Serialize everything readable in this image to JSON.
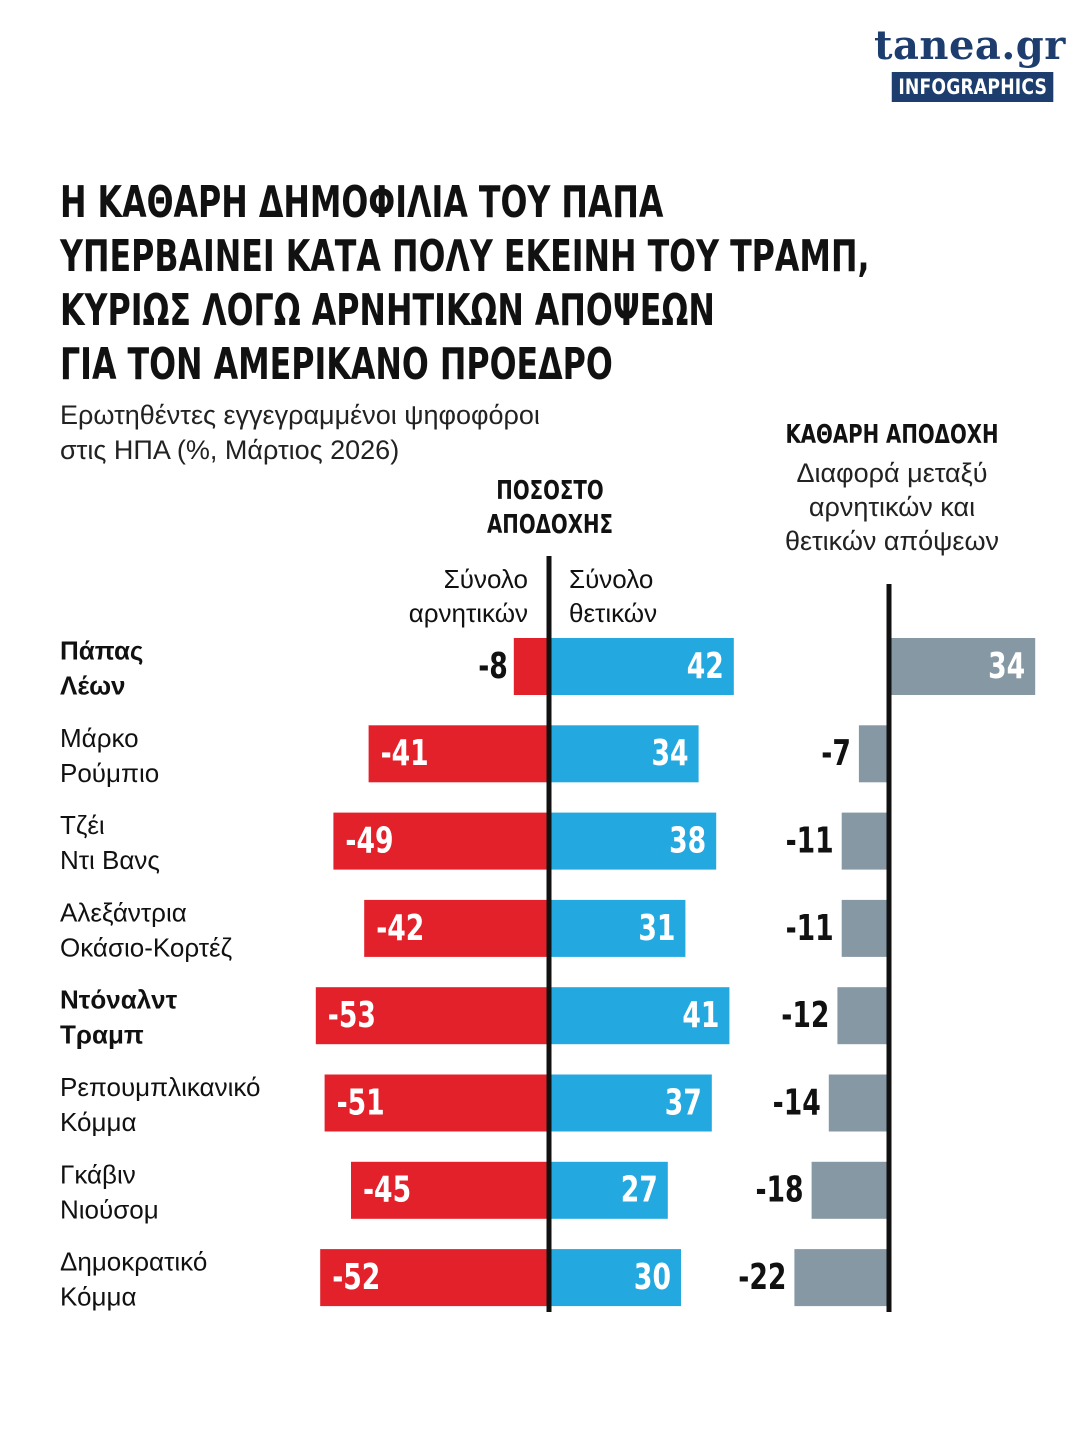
{
  "brand": {
    "name": "tanea.gr",
    "tag": "INFOGRAPHICS"
  },
  "title_lines": [
    "Η ΚΑΘΑΡΗ ΔΗΜΟΦΙΛΙΑ ΤΟΥ ΠΑΠΑ",
    "ΥΠΕΡΒΑΙΝΕΙ ΚΑΤΑ ΠΟΛΥ ΕΚΕΙΝΗ ΤΟΥ ΤΡΑΜΠ,",
    "ΚΥΡΙΩΣ ΛΟΓΩ ΑΡΝΗΤΙΚΩΝ ΑΠΟΨΕΩΝ",
    "ΓΙΑ ΤΟΝ ΑΜΕΡΙΚΑΝΟ ΠΡΟΕΔΡΟ"
  ],
  "subtitle": "Ερωτηθέντες εγγεγραμμένοι ψηφοφόροι\nστις ΗΠΑ (%, Μάρτιος 2026)",
  "headers": {
    "approval": "ΠΟΣΟΣΤΟ\nΑΠΟΔΟΧΗΣ",
    "negative": "Σύνολο\nαρνητικών",
    "positive": "Σύνολο\nθετικών",
    "net": "ΚΑΘΑΡΗ ΑΠΟΔΟΧΗ",
    "net_desc": "Διαφορά μεταξύ\nαρνητικών και\nθετικών απόψεων"
  },
  "colors": {
    "negative": "#e3212b",
    "positive": "#24a8e0",
    "net": "#8798a5",
    "axis": "#111111",
    "brand": "#1d3d6e"
  },
  "chart_data": {
    "type": "bar",
    "orientation": "horizontal",
    "categories": [
      "Πάπας Λέων",
      "Μάρκο Ρούμπιο",
      "Τζέι Ντι Βανς",
      "Αλεξάντρια Οκάσιο-Κορτέζ",
      "Ντόναλντ Τραμπ",
      "Ρεπουμπλικανικό Κόμμα",
      "Γκάβιν Νιούσομ",
      "Δημοκρατικό Κόμμα"
    ],
    "category_lines": [
      [
        "Πάπας",
        "Λέων"
      ],
      [
        "Μάρκο",
        "Ρούμπιο"
      ],
      [
        "Τζέι",
        "Ντι Βανς"
      ],
      [
        "Αλεξάντρια",
        "Οκάσιο-Κορτέζ"
      ],
      [
        "Ντόναλντ",
        "Τραμπ"
      ],
      [
        "Ρεπουμπλικανικό",
        "Κόμμα"
      ],
      [
        "Γκάβιν",
        "Νιούσομ"
      ],
      [
        "Δημοκρατικό",
        "Κόμμα"
      ]
    ],
    "bold_categories": [
      true,
      false,
      false,
      false,
      true,
      false,
      false,
      false
    ],
    "series": [
      {
        "name": "Σύνολο αρνητικών",
        "values": [
          -8,
          -41,
          -49,
          -42,
          -53,
          -51,
          -45,
          -52
        ]
      },
      {
        "name": "Σύνολο θετικών",
        "values": [
          42,
          34,
          38,
          31,
          41,
          37,
          27,
          30
        ]
      },
      {
        "name": "ΚΑΘΑΡΗ ΑΠΟΔΟΧΗ",
        "values": [
          34,
          -7,
          -11,
          -11,
          -12,
          -14,
          -18,
          -22
        ]
      }
    ],
    "xlim": [
      -53,
      42
    ],
    "net_xlim": [
      -22,
      34
    ]
  }
}
